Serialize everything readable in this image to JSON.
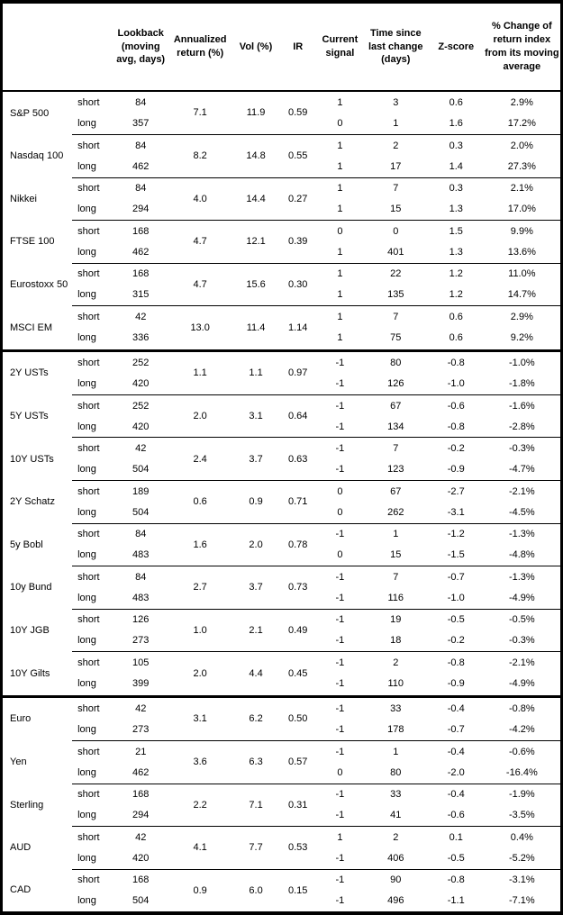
{
  "table": {
    "columns": [
      "Lookback (moving avg, days)",
      "Annualized return (%)",
      "Vol (%)",
      "IR",
      "Current signal",
      "Time since last change (days)",
      "Z-score",
      "% Change of return index from its moving average"
    ],
    "period_labels": {
      "short": "short",
      "long": "long"
    },
    "rows": [
      {
        "name": "S&P 500",
        "section_start": false,
        "ann": "7.1",
        "vol": "11.9",
        "ir": "0.59",
        "short": {
          "lookback": "84",
          "signal": "1",
          "days": "3",
          "zscore": "0.6",
          "pct": "2.9%"
        },
        "long": {
          "lookback": "357",
          "signal": "0",
          "days": "1",
          "zscore": "1.6",
          "pct": "17.2%"
        }
      },
      {
        "name": "Nasdaq 100",
        "section_start": false,
        "ann": "8.2",
        "vol": "14.8",
        "ir": "0.55",
        "short": {
          "lookback": "84",
          "signal": "1",
          "days": "2",
          "zscore": "0.3",
          "pct": "2.0%"
        },
        "long": {
          "lookback": "462",
          "signal": "1",
          "days": "17",
          "zscore": "1.4",
          "pct": "27.3%"
        }
      },
      {
        "name": "Nikkei",
        "section_start": false,
        "ann": "4.0",
        "vol": "14.4",
        "ir": "0.27",
        "short": {
          "lookback": "84",
          "signal": "1",
          "days": "7",
          "zscore": "0.3",
          "pct": "2.1%"
        },
        "long": {
          "lookback": "294",
          "signal": "1",
          "days": "15",
          "zscore": "1.3",
          "pct": "17.0%"
        }
      },
      {
        "name": "FTSE 100",
        "section_start": false,
        "ann": "4.7",
        "vol": "12.1",
        "ir": "0.39",
        "short": {
          "lookback": "168",
          "signal": "0",
          "days": "0",
          "zscore": "1.5",
          "pct": "9.9%"
        },
        "long": {
          "lookback": "462",
          "signal": "1",
          "days": "401",
          "zscore": "1.3",
          "pct": "13.6%"
        }
      },
      {
        "name": "Eurostoxx 50",
        "section_start": false,
        "ann": "4.7",
        "vol": "15.6",
        "ir": "0.30",
        "short": {
          "lookback": "168",
          "signal": "1",
          "days": "22",
          "zscore": "1.2",
          "pct": "11.0%"
        },
        "long": {
          "lookback": "315",
          "signal": "1",
          "days": "135",
          "zscore": "1.2",
          "pct": "14.7%"
        }
      },
      {
        "name": "MSCI EM",
        "section_start": false,
        "ann": "13.0",
        "vol": "11.4",
        "ir": "1.14",
        "short": {
          "lookback": "42",
          "signal": "1",
          "days": "7",
          "zscore": "0.6",
          "pct": "2.9%"
        },
        "long": {
          "lookback": "336",
          "signal": "1",
          "days": "75",
          "zscore": "0.6",
          "pct": "9.2%"
        }
      },
      {
        "name": "2Y USTs",
        "section_start": true,
        "ann": "1.1",
        "vol": "1.1",
        "ir": "0.97",
        "short": {
          "lookback": "252",
          "signal": "-1",
          "days": "80",
          "zscore": "-0.8",
          "pct": "-1.0%"
        },
        "long": {
          "lookback": "420",
          "signal": "-1",
          "days": "126",
          "zscore": "-1.0",
          "pct": "-1.8%"
        }
      },
      {
        "name": "5Y USTs",
        "section_start": false,
        "ann": "2.0",
        "vol": "3.1",
        "ir": "0.64",
        "short": {
          "lookback": "252",
          "signal": "-1",
          "days": "67",
          "zscore": "-0.6",
          "pct": "-1.6%"
        },
        "long": {
          "lookback": "420",
          "signal": "-1",
          "days": "134",
          "zscore": "-0.8",
          "pct": "-2.8%"
        }
      },
      {
        "name": "10Y USTs",
        "section_start": false,
        "ann": "2.4",
        "vol": "3.7",
        "ir": "0.63",
        "short": {
          "lookback": "42",
          "signal": "-1",
          "days": "7",
          "zscore": "-0.2",
          "pct": "-0.3%"
        },
        "long": {
          "lookback": "504",
          "signal": "-1",
          "days": "123",
          "zscore": "-0.9",
          "pct": "-4.7%"
        }
      },
      {
        "name": "2Y Schatz",
        "section_start": false,
        "ann": "0.6",
        "vol": "0.9",
        "ir": "0.71",
        "short": {
          "lookback": "189",
          "signal": "0",
          "days": "67",
          "zscore": "-2.7",
          "pct": "-2.1%"
        },
        "long": {
          "lookback": "504",
          "signal": "0",
          "days": "262",
          "zscore": "-3.1",
          "pct": "-4.5%"
        }
      },
      {
        "name": "5y Bobl",
        "section_start": false,
        "ann": "1.6",
        "vol": "2.0",
        "ir": "0.78",
        "short": {
          "lookback": "84",
          "signal": "-1",
          "days": "1",
          "zscore": "-1.2",
          "pct": "-1.3%"
        },
        "long": {
          "lookback": "483",
          "signal": "0",
          "days": "15",
          "zscore": "-1.5",
          "pct": "-4.8%"
        }
      },
      {
        "name": "10y Bund",
        "section_start": false,
        "ann": "2.7",
        "vol": "3.7",
        "ir": "0.73",
        "short": {
          "lookback": "84",
          "signal": "-1",
          "days": "7",
          "zscore": "-0.7",
          "pct": "-1.3%"
        },
        "long": {
          "lookback": "483",
          "signal": "-1",
          "days": "116",
          "zscore": "-1.0",
          "pct": "-4.9%"
        }
      },
      {
        "name": "10Y JGB",
        "section_start": false,
        "ann": "1.0",
        "vol": "2.1",
        "ir": "0.49",
        "short": {
          "lookback": "126",
          "signal": "-1",
          "days": "19",
          "zscore": "-0.5",
          "pct": "-0.5%"
        },
        "long": {
          "lookback": "273",
          "signal": "-1",
          "days": "18",
          "zscore": "-0.2",
          "pct": "-0.3%"
        }
      },
      {
        "name": "10Y Gilts",
        "section_start": false,
        "ann": "2.0",
        "vol": "4.4",
        "ir": "0.45",
        "short": {
          "lookback": "105",
          "signal": "-1",
          "days": "2",
          "zscore": "-0.8",
          "pct": "-2.1%"
        },
        "long": {
          "lookback": "399",
          "signal": "-1",
          "days": "110",
          "zscore": "-0.9",
          "pct": "-4.9%"
        }
      },
      {
        "name": "Euro",
        "section_start": true,
        "ann": "3.1",
        "vol": "6.2",
        "ir": "0.50",
        "short": {
          "lookback": "42",
          "signal": "-1",
          "days": "33",
          "zscore": "-0.4",
          "pct": "-0.8%"
        },
        "long": {
          "lookback": "273",
          "signal": "-1",
          "days": "178",
          "zscore": "-0.7",
          "pct": "-4.2%"
        }
      },
      {
        "name": "Yen",
        "section_start": false,
        "ann": "3.6",
        "vol": "6.3",
        "ir": "0.57",
        "short": {
          "lookback": "21",
          "signal": "-1",
          "days": "1",
          "zscore": "-0.4",
          "pct": "-0.6%"
        },
        "long": {
          "lookback": "462",
          "signal": "0",
          "days": "80",
          "zscore": "-2.0",
          "pct": "-16.4%"
        }
      },
      {
        "name": "Sterling",
        "section_start": false,
        "ann": "2.2",
        "vol": "7.1",
        "ir": "0.31",
        "short": {
          "lookback": "168",
          "signal": "-1",
          "days": "33",
          "zscore": "-0.4",
          "pct": "-1.9%"
        },
        "long": {
          "lookback": "294",
          "signal": "-1",
          "days": "41",
          "zscore": "-0.6",
          "pct": "-3.5%"
        }
      },
      {
        "name": "AUD",
        "section_start": false,
        "ann": "4.1",
        "vol": "7.7",
        "ir": "0.53",
        "short": {
          "lookback": "42",
          "signal": "1",
          "days": "2",
          "zscore": "0.1",
          "pct": "0.4%"
        },
        "long": {
          "lookback": "420",
          "signal": "-1",
          "days": "406",
          "zscore": "-0.5",
          "pct": "-5.2%"
        }
      },
      {
        "name": "CAD",
        "section_start": false,
        "ann": "0.9",
        "vol": "6.0",
        "ir": "0.15",
        "short": {
          "lookback": "168",
          "signal": "-1",
          "days": "90",
          "zscore": "-0.8",
          "pct": "-3.1%"
        },
        "long": {
          "lookback": "504",
          "signal": "-1",
          "days": "496",
          "zscore": "-1.1",
          "pct": "-7.1%"
        }
      }
    ]
  }
}
